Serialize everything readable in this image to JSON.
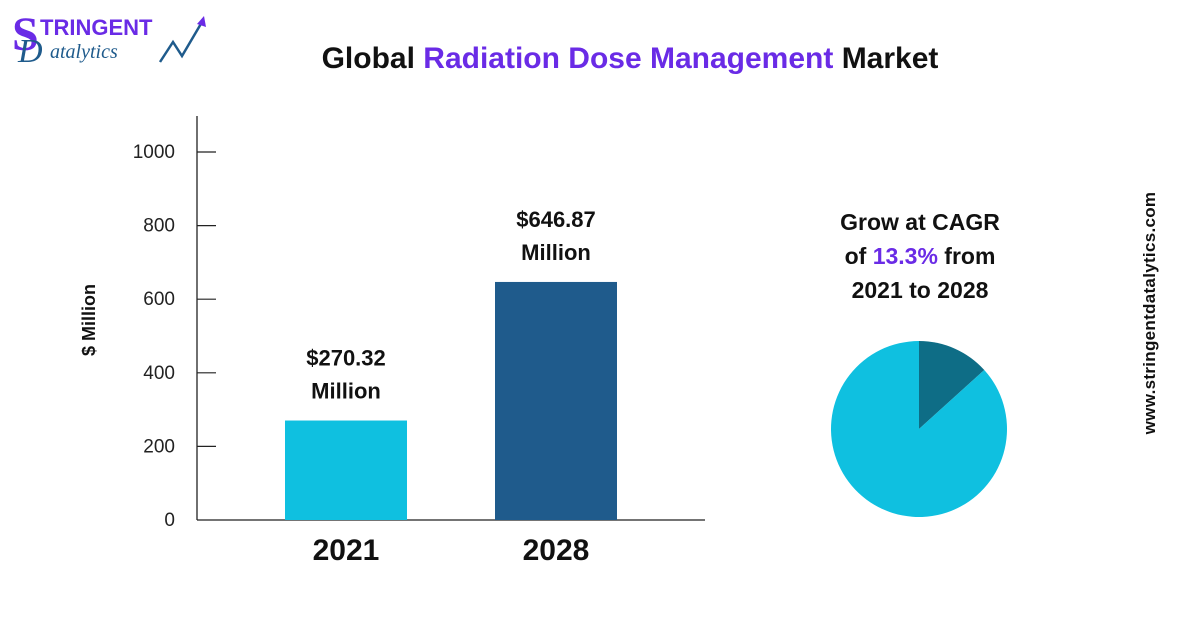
{
  "logo": {
    "text_main": "TRINGENT",
    "text_sub": "atalytics",
    "icon": "stringent-datalytics-logo"
  },
  "title": {
    "prefix": "Global ",
    "highlight": "Radiation Dose Management",
    "suffix": " Market"
  },
  "cagr": {
    "line1": "Grow at CAGR",
    "line2_prefix": "of ",
    "line2_highlight": "13.3%",
    "line2_suffix": " from",
    "line3": "2021 to 2028"
  },
  "website": "www.stringentdatalytics.com",
  "colors": {
    "accent_purple": "#6a2be6",
    "bar_2021": "#0fc0e0",
    "bar_2028": "#1f5b8c",
    "pie_main": "#0fc0e0",
    "pie_slice": "#0e6d86"
  },
  "chart_data": [
    {
      "type": "bar",
      "categories": [
        "2021",
        "2028"
      ],
      "values": [
        270.32,
        646.87
      ],
      "data_labels": [
        [
          "$270.32",
          "Million"
        ],
        [
          "$646.87",
          "Million"
        ]
      ],
      "ylabel": "$ Million",
      "yticks": [
        0,
        200,
        400,
        600,
        800,
        1000
      ],
      "ylim": [
        0,
        1100
      ],
      "grid": false,
      "legend": "none"
    },
    {
      "type": "pie",
      "slices": [
        {
          "value": 13.3,
          "color": "#0e6d86"
        },
        {
          "value": 86.7,
          "color": "#0fc0e0"
        }
      ]
    }
  ]
}
